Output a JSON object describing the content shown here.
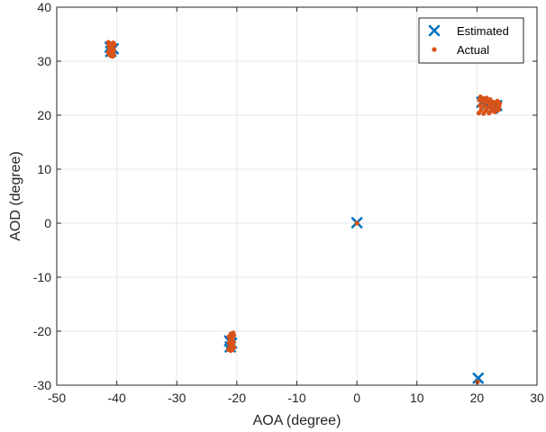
{
  "chart_data": {
    "type": "scatter",
    "xlabel": "AOA (degree)",
    "ylabel": "AOD (degree)",
    "xlim": [
      -50,
      30
    ],
    "ylim": [
      -30,
      40
    ],
    "xticks": [
      -50,
      -40,
      -30,
      -20,
      -10,
      0,
      10,
      20,
      30
    ],
    "yticks": [
      -30,
      -20,
      -10,
      0,
      10,
      20,
      30,
      40
    ],
    "xtick_labels": [
      "-50",
      "-40",
      "-30",
      "-20",
      "-10",
      "0",
      "10",
      "20",
      "30"
    ],
    "ytick_labels": [
      "-30",
      "-20",
      "-10",
      "0",
      "10",
      "20",
      "30",
      "40"
    ],
    "grid": true,
    "legend_position": "top-right",
    "series": [
      {
        "name": "Estimated",
        "marker": "x",
        "color": "#0072BD",
        "points": [
          [
            -41.1,
            32.6
          ],
          [
            -40.6,
            32.3
          ],
          [
            -41.0,
            31.8
          ],
          [
            -21.2,
            -21.8
          ],
          [
            -20.9,
            -22.2
          ],
          [
            -21.1,
            -22.9
          ],
          [
            0.0,
            0.1
          ],
          [
            20.2,
            -28.7
          ],
          [
            20.8,
            22.4
          ],
          [
            21.6,
            22.0
          ],
          [
            22.6,
            21.3
          ],
          [
            23.3,
            21.8
          ]
        ]
      },
      {
        "name": "Actual",
        "marker": "dot",
        "color": "#D95319",
        "points": [
          [
            -41.4,
            33.5
          ],
          [
            -41.0,
            33.2
          ],
          [
            -40.6,
            33.4
          ],
          [
            -40.4,
            33.0
          ],
          [
            -41.3,
            32.8
          ],
          [
            -40.8,
            32.5
          ],
          [
            -41.2,
            32.1
          ],
          [
            -40.7,
            31.9
          ],
          [
            -41.4,
            31.6
          ],
          [
            -40.9,
            31.5
          ],
          [
            -40.5,
            31.2
          ],
          [
            -41.2,
            31.2
          ],
          [
            -40.7,
            30.9
          ],
          [
            -41.0,
            31.0
          ],
          [
            -40.5,
            32.0
          ],
          [
            -41.3,
            33.0
          ],
          [
            -20.6,
            -20.3
          ],
          [
            -21.0,
            -20.5
          ],
          [
            -20.5,
            -20.8
          ],
          [
            -21.3,
            -21.0
          ],
          [
            -20.8,
            -21.3
          ],
          [
            -21.1,
            -21.6
          ],
          [
            -20.6,
            -21.9
          ],
          [
            -21.3,
            -22.2
          ],
          [
            -20.8,
            -22.5
          ],
          [
            -21.0,
            -22.8
          ],
          [
            -20.5,
            -23.0
          ],
          [
            -21.2,
            -23.1
          ],
          [
            -20.7,
            -23.4
          ],
          [
            -21.0,
            -23.6
          ],
          [
            -21.4,
            -23.4
          ],
          [
            -20.6,
            -22.2
          ],
          [
            0.0,
            0.0
          ],
          [
            20.1,
            -29.4
          ],
          [
            20.6,
            23.4
          ],
          [
            21.0,
            23.1
          ],
          [
            21.6,
            23.2
          ],
          [
            22.2,
            22.9
          ],
          [
            20.8,
            22.6
          ],
          [
            21.4,
            22.4
          ],
          [
            22.1,
            22.2
          ],
          [
            22.8,
            22.4
          ],
          [
            23.4,
            22.6
          ],
          [
            23.8,
            22.2
          ],
          [
            20.5,
            21.8
          ],
          [
            21.2,
            21.7
          ],
          [
            21.9,
            21.5
          ],
          [
            22.5,
            21.2
          ],
          [
            23.2,
            21.4
          ],
          [
            23.7,
            21.6
          ],
          [
            20.7,
            21.0
          ],
          [
            21.5,
            20.9
          ],
          [
            22.3,
            20.7
          ],
          [
            23.0,
            20.6
          ],
          [
            23.6,
            21.0
          ],
          [
            20.3,
            20.4
          ],
          [
            21.1,
            20.3
          ],
          [
            22.0,
            20.4
          ],
          [
            22.7,
            21.8
          ],
          [
            21.8,
            22.6
          ],
          [
            20.4,
            22.8
          ],
          [
            23.5,
            22.0
          ]
        ]
      }
    ]
  }
}
